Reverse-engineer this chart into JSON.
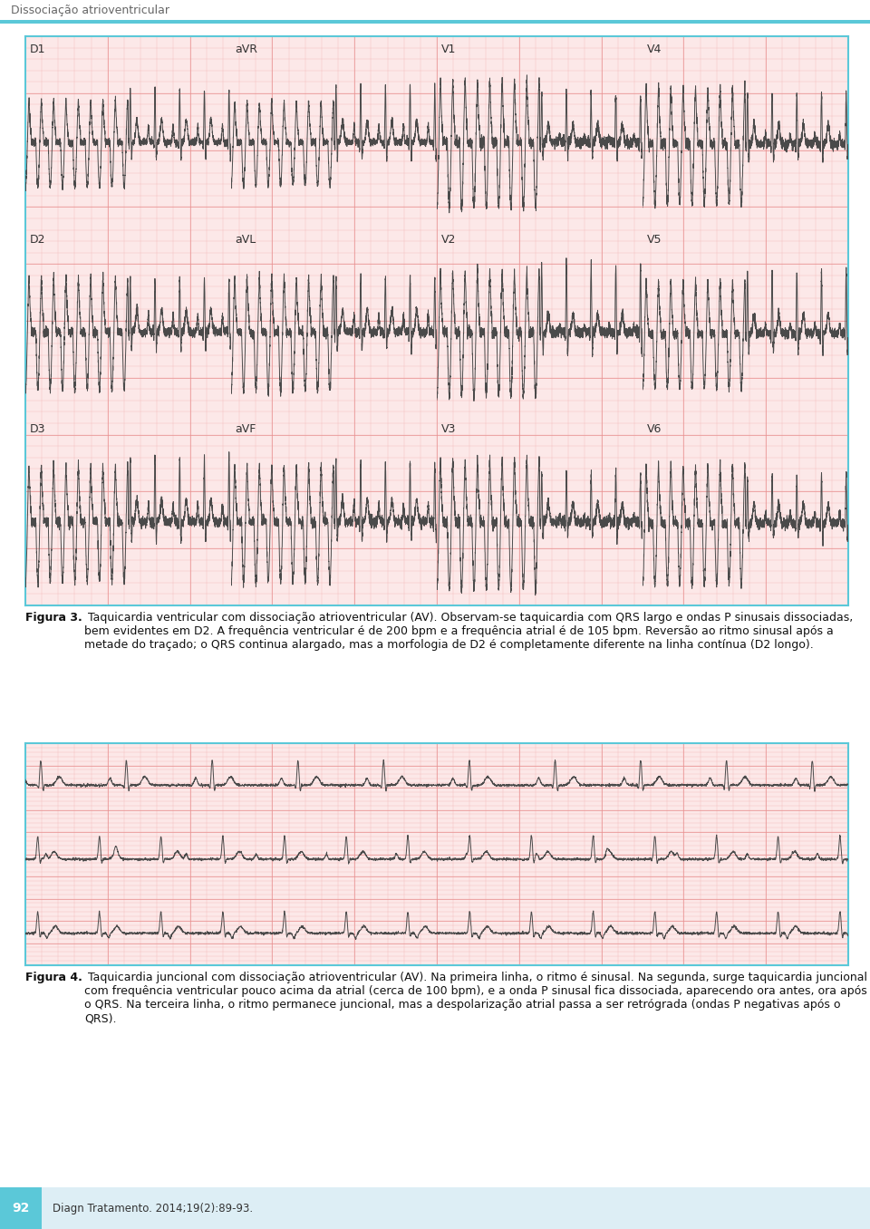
{
  "page_bg": "#ffffff",
  "ecg_bg": "#fce8e8",
  "ecg_grid_minor": "#f5b8b8",
  "ecg_grid_major": "#e89090",
  "ecg_line_color": "#4a4a4a",
  "border_color": "#5bc8d8",
  "header_text": "Dissociação atrioventricular",
  "header_color": "#666666",
  "header_line_color": "#5bc8d8",
  "fig3_label": "Figura 3.",
  "fig3_rest": " Taquicardia ventricular com dissociação atrioventricular (AV). Observam-se taquicardia com QRS largo e ondas P sinusais dissociadas, bem evidentes em D2. A frequência ventricular é de 200 bpm e a frequência atrial é de 105 bpm. Reversão ao ritmo sinusal após a metade do traçado; o QRS continua alargado, mas a morfologia de D2 é completamente diferente na linha contínua (D2 longo).",
  "fig4_label": "Figura 4.",
  "fig4_rest": " Taquicardia juncional com dissociação atrioventricular (AV). Na primeira linha, o ritmo é sinusal. Na segunda, surge taquicardia juncional com frequência ventricular pouco acima da atrial (cerca de 100 bpm), e a onda P sinusal fica dissociada, aparecendo ora antes, ora após o QRS. Na terceira linha, o ritmo permanece juncional, mas a despolarização atrial passa a ser retrógrada (ondas P negativas após o QRS).",
  "footer_page": "92",
  "footer_text": "Diagn Tratamento. 2014;19(2):89-93.",
  "footer_bg": "#ddeef5",
  "footer_num_bg": "#5bc8d8",
  "lead_names_row1": [
    "D1",
    "aVR",
    "V1",
    "V4"
  ],
  "lead_names_row2": [
    "D2",
    "aVL",
    "V2",
    "V5"
  ],
  "lead_names_row3": [
    "D3",
    "aVF",
    "V3",
    "V6"
  ],
  "caption_fontsize": 9.0,
  "lead_fontsize": 9,
  "header_fontsize": 9
}
